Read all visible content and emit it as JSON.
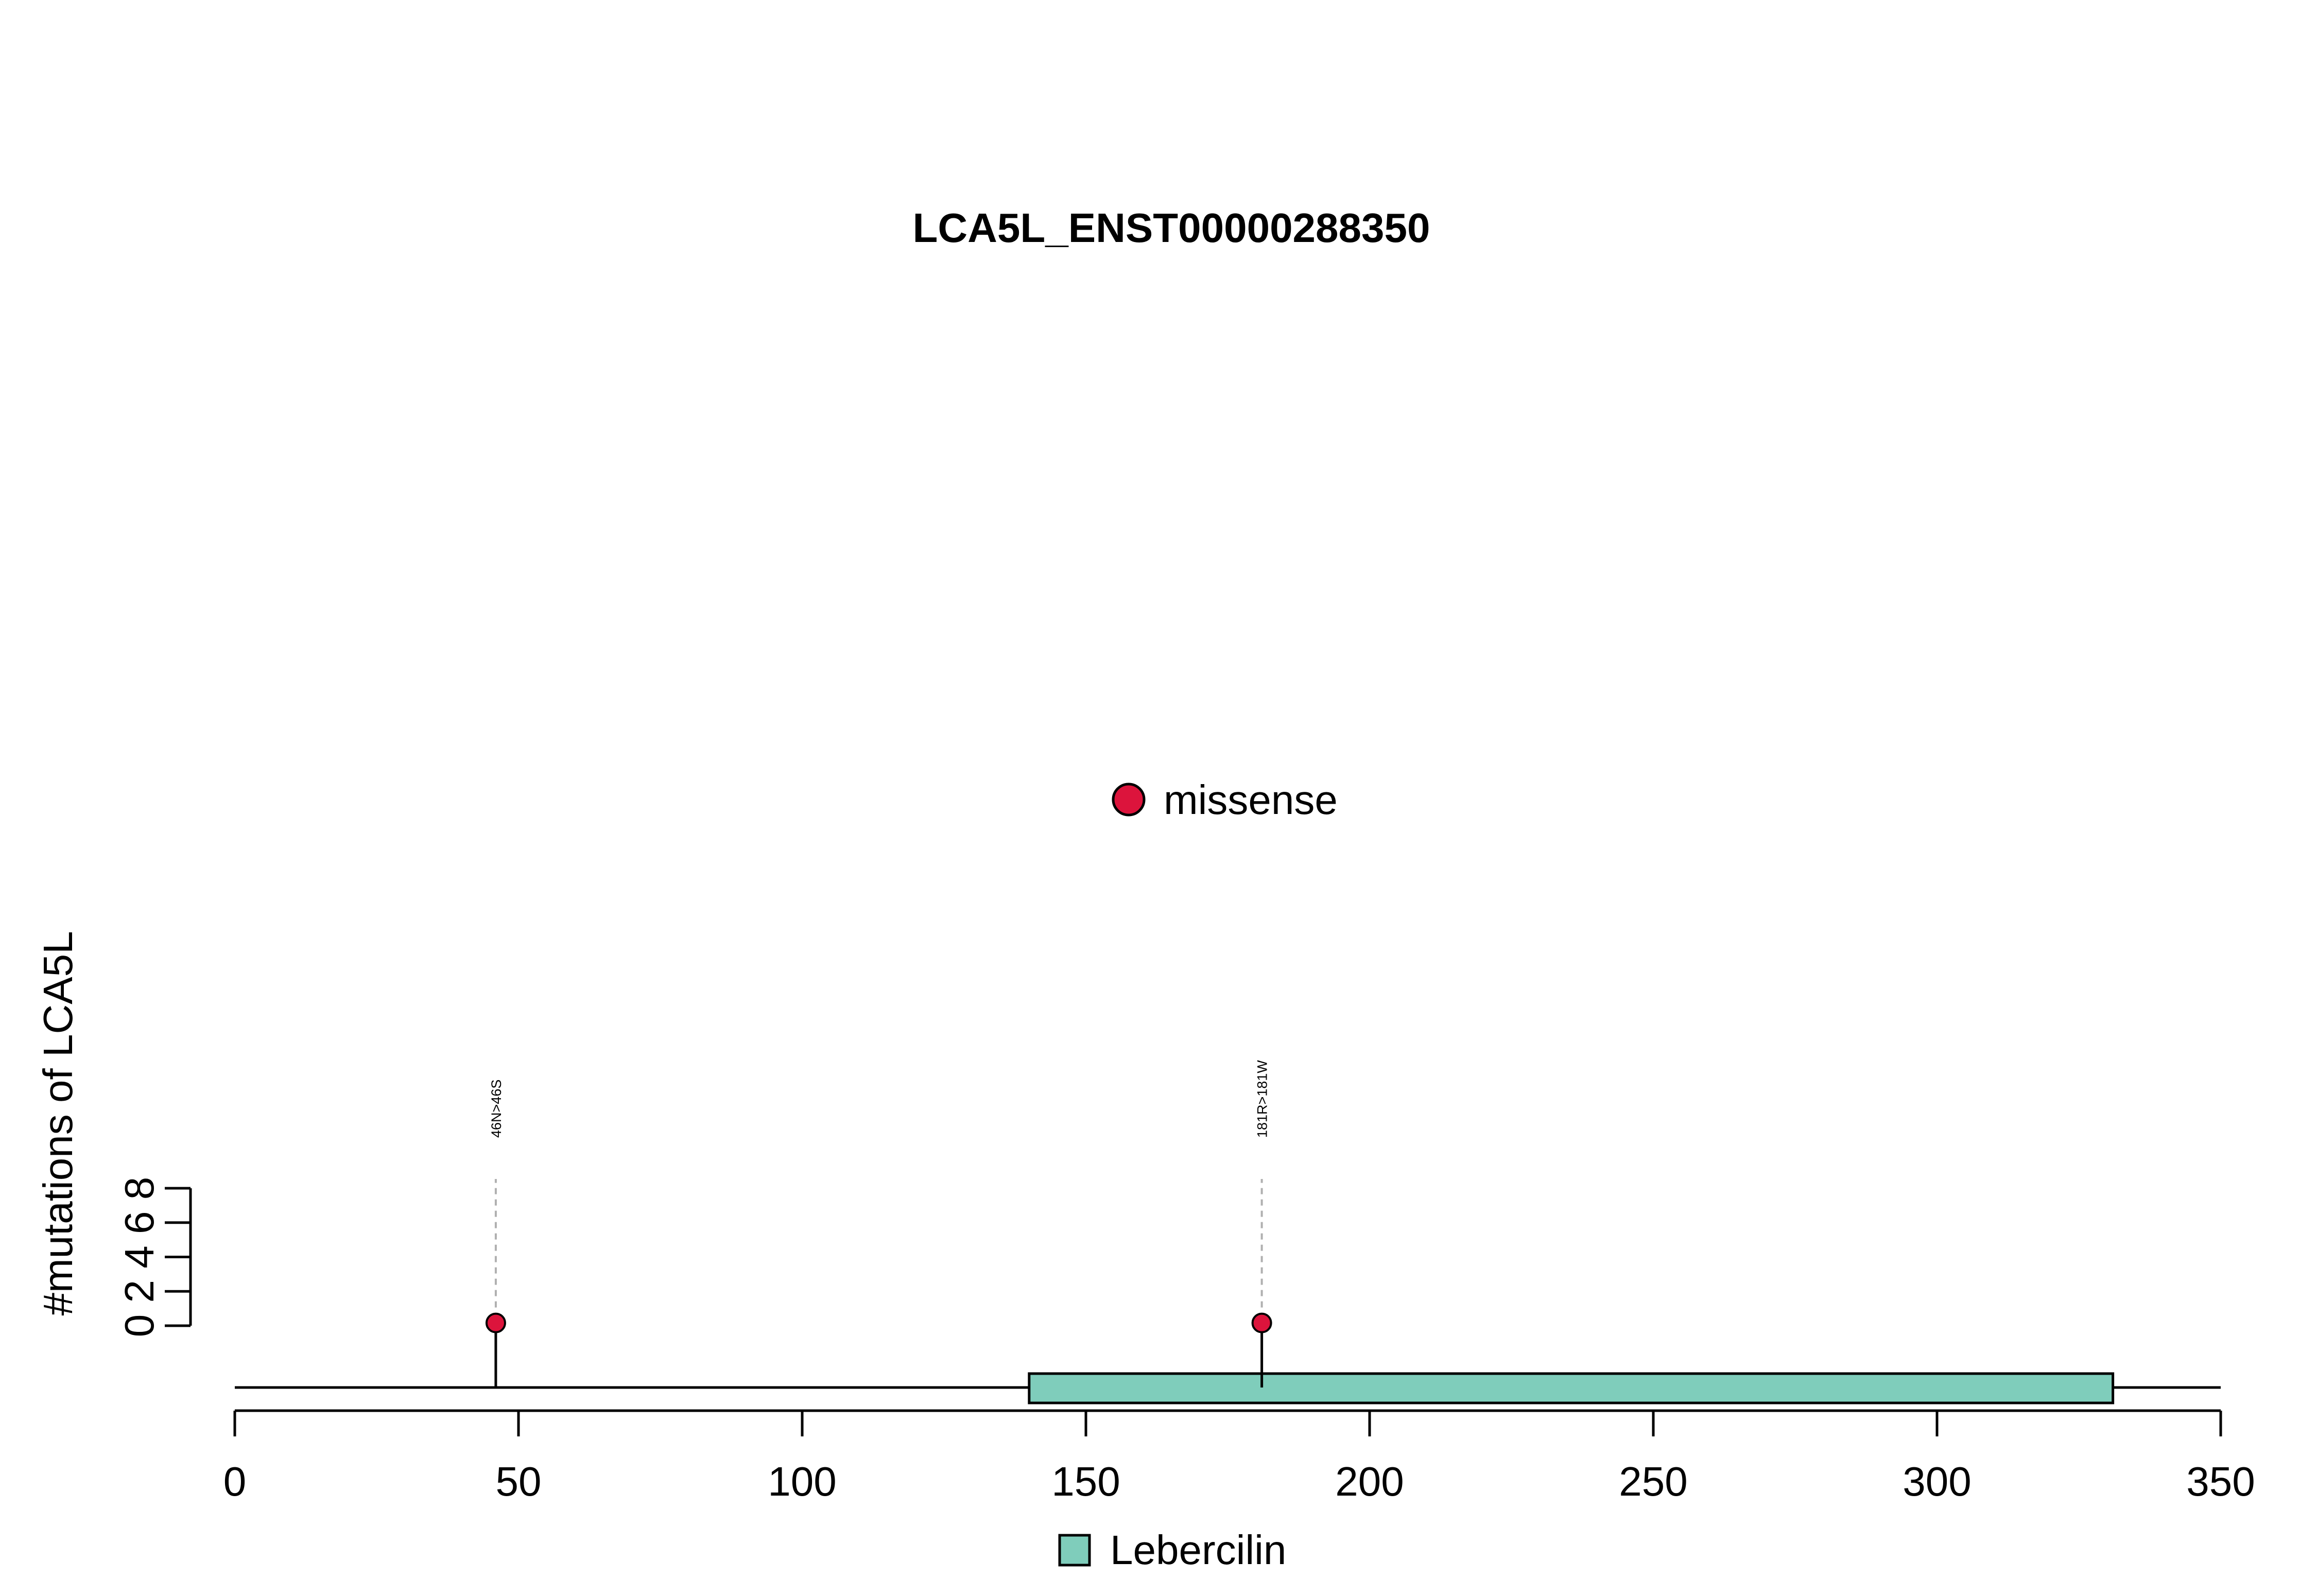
{
  "chart_data": {
    "type": "lollipop",
    "title": "LCA5L_ENST00000288350",
    "xlabel": "",
    "ylabel": "#mutations of LCA5L",
    "xlim": [
      0,
      350
    ],
    "ylim": [
      0,
      8
    ],
    "x_ticks": [
      0,
      50,
      100,
      150,
      200,
      250,
      300,
      350
    ],
    "x_tick_labels": [
      "0",
      "50",
      "100",
      "150",
      "200",
      "250",
      "300",
      "350"
    ],
    "y_ticks": [
      0,
      2,
      4,
      6,
      8
    ],
    "y_tick_labels": [
      "0",
      "2",
      "4",
      "6",
      "8"
    ],
    "mutations": [
      {
        "position": 46,
        "count": 1,
        "label": "46N>46S",
        "type": "missense"
      },
      {
        "position": 181,
        "count": 1,
        "label": "181R>181W",
        "type": "missense"
      }
    ],
    "domains": [
      {
        "name": "Lebercilin",
        "start": 140,
        "end": 331,
        "color": "#7fcdbb"
      }
    ],
    "protein_length": 350,
    "mutation_legend": [
      {
        "label": "missense",
        "color": "#dc143c"
      }
    ],
    "domain_legend": [
      {
        "label": "Lebercilin",
        "color": "#7fcdbb"
      }
    ],
    "grid": false
  }
}
